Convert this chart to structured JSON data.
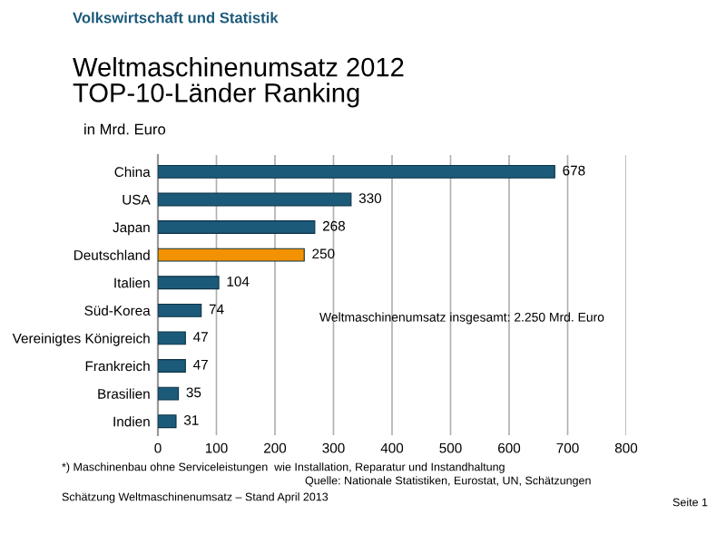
{
  "chart_data": {
    "type": "bar",
    "orientation": "horizontal",
    "title": "Weltmaschinenumsatz 2012\nTOP-10-Länder Ranking",
    "subtitle": "in Mrd. Euro",
    "categories": [
      "China",
      "USA",
      "Japan",
      "Deutschland",
      "Italien",
      "Süd-Korea",
      "Vereinigtes Königreich",
      "Frankreich",
      "Brasilien",
      "Indien"
    ],
    "values": [
      678,
      330,
      268,
      250,
      104,
      74,
      47,
      47,
      35,
      31
    ],
    "colors": [
      "#1c5a7a",
      "#1c5a7a",
      "#1c5a7a",
      "#f39200",
      "#1c5a7a",
      "#1c5a7a",
      "#1c5a7a",
      "#1c5a7a",
      "#1c5a7a",
      "#1c5a7a"
    ],
    "xlim": [
      0,
      800
    ],
    "xticks": [
      0,
      100,
      200,
      300,
      400,
      500,
      600,
      700,
      800
    ],
    "grid": "x",
    "data_labels": true,
    "legend": false,
    "annotations": [
      "Volkswirtschaft und Statistik",
      "Weltmaschinenumsatz insgesamt: 2.250 Mrd. Euro",
      "*) Maschinenbau ohne Serviceleistungen  wie Installation, Reparatur und Instandhaltung",
      "Quelle: Nationale Statistiken, Eurostat, UN, Schätzungen",
      "Schätzung Weltmaschinenumsatz – Stand April 2013",
      "Seite 1"
    ]
  }
}
